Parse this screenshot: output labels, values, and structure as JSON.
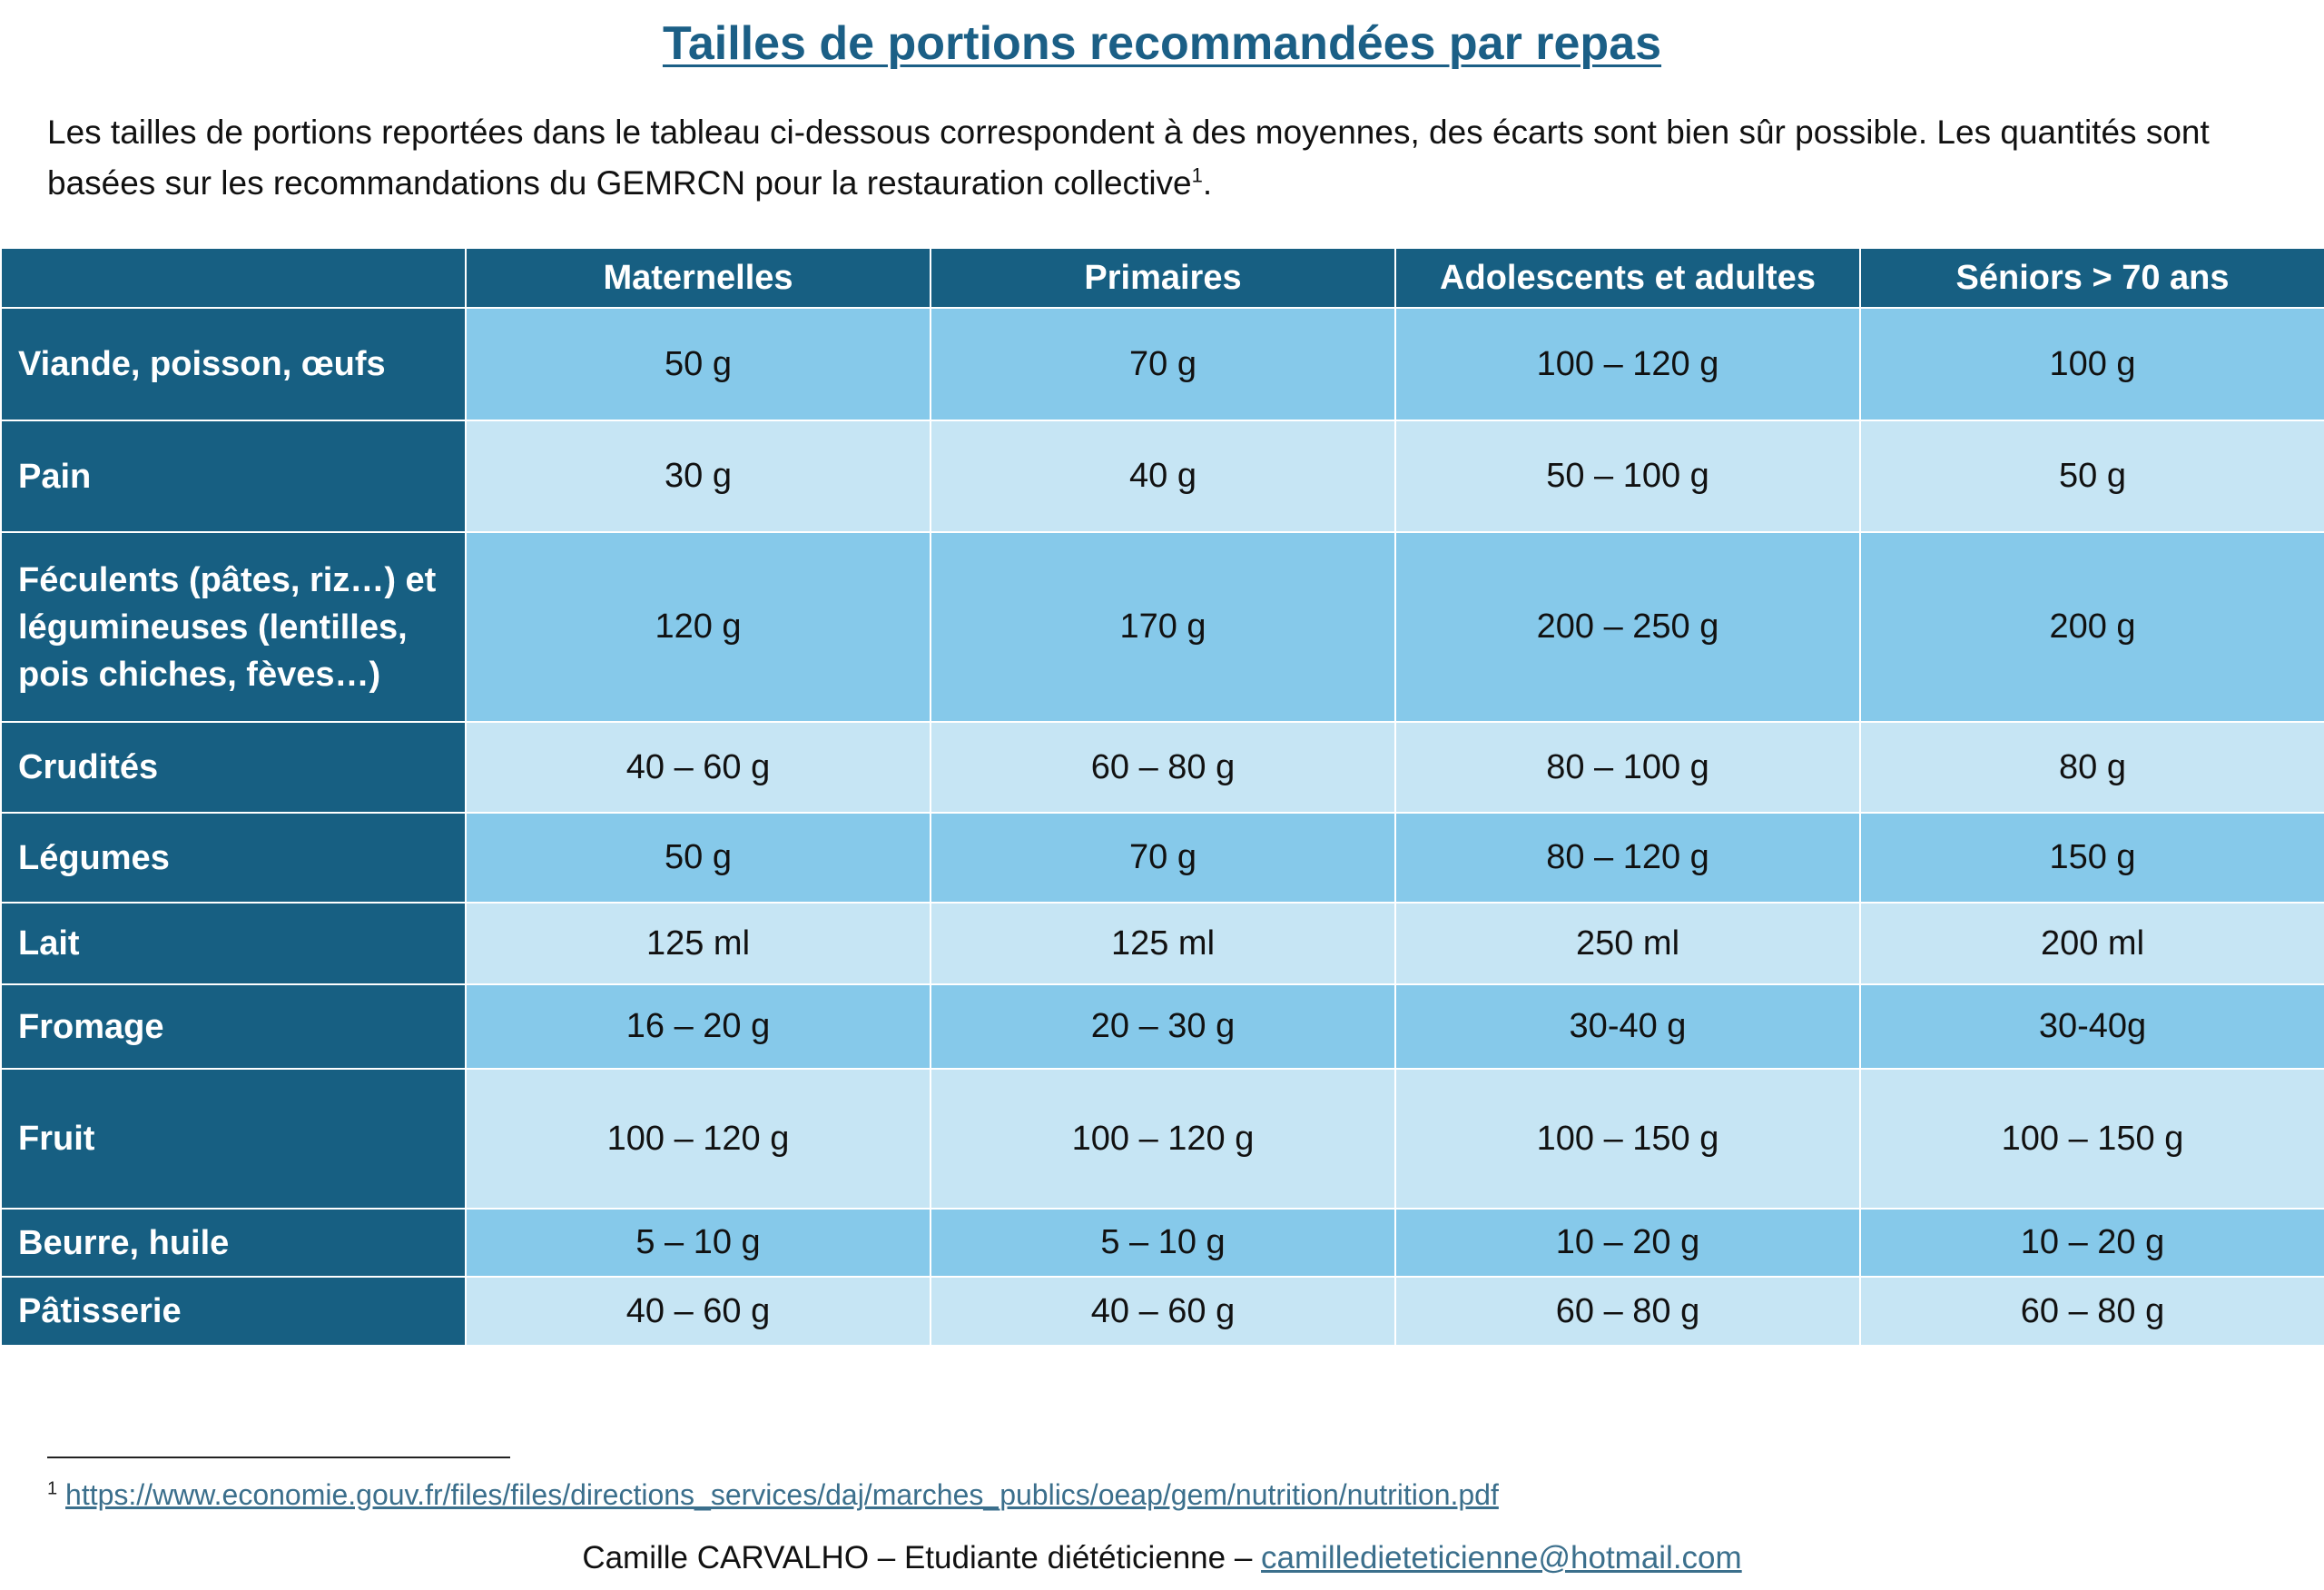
{
  "title": "Tailles de portions recommandées par repas",
  "intro": {
    "text": "Les tailles de portions reportées dans le tableau ci-dessous correspondent à des moyennes, des écarts sont bien sûr possible. Les quantités sont basées sur les recommandations du GEMRCN pour la restauration collective",
    "footnote_ref": "1",
    "end": "."
  },
  "table": {
    "headers": [
      "",
      "Maternelles",
      "Primaires",
      "Adolescents et adultes",
      "Séniors > 70 ans"
    ],
    "rows": [
      {
        "label": "Viande, poisson, œufs",
        "values": [
          "50 g",
          "70 g",
          "100 – 120 g",
          "100 g"
        ]
      },
      {
        "label": "Pain",
        "values": [
          "30 g",
          "40 g",
          "50 – 100 g",
          "50 g"
        ]
      },
      {
        "label": "Féculents (pâtes, riz…) et légumineuses (lentilles, pois chiches, fèves…)",
        "values": [
          "120 g",
          "170 g",
          "200 – 250 g",
          "200 g"
        ]
      },
      {
        "label": "Crudités",
        "values": [
          "40 – 60 g",
          "60 – 80 g",
          "80 – 100 g",
          "80 g"
        ]
      },
      {
        "label": "Légumes",
        "values": [
          "50 g",
          "70 g",
          "80 – 120 g",
          "150 g"
        ]
      },
      {
        "label": "Lait",
        "values": [
          "125 ml",
          "125 ml",
          "250 ml",
          "200 ml"
        ]
      },
      {
        "label": "Fromage",
        "values": [
          "16 – 20 g",
          "20 – 30 g",
          "30-40 g",
          "30-40g"
        ]
      },
      {
        "label": "Fruit",
        "values": [
          "100 – 120 g",
          "100 – 120 g",
          "100 – 150 g",
          "100 – 150 g"
        ]
      },
      {
        "label": "Beurre, huile",
        "values": [
          "5 – 10 g",
          "5 – 10 g",
          "10 – 20 g",
          "10 – 20 g"
        ]
      },
      {
        "label": "Pâtisserie",
        "values": [
          "40 – 60 g",
          "40 – 60 g",
          "60 – 80 g",
          "60 – 80 g"
        ]
      }
    ]
  },
  "footnote": {
    "marker": "1",
    "link": "https://www.economie.gouv.fr/files/files/directions_services/daj/marches_publics/oeap/gem/nutrition/nutrition.pdf"
  },
  "author": {
    "text": "Camille CARVALHO – Etudiante diététicienne – ",
    "email": "camilledieteticienne@hotmail.com"
  },
  "colors": {
    "header_bg": "#175f82",
    "row_dark": "#86c9ea",
    "row_light": "#c6e5f4",
    "title": "#1b5f86"
  }
}
